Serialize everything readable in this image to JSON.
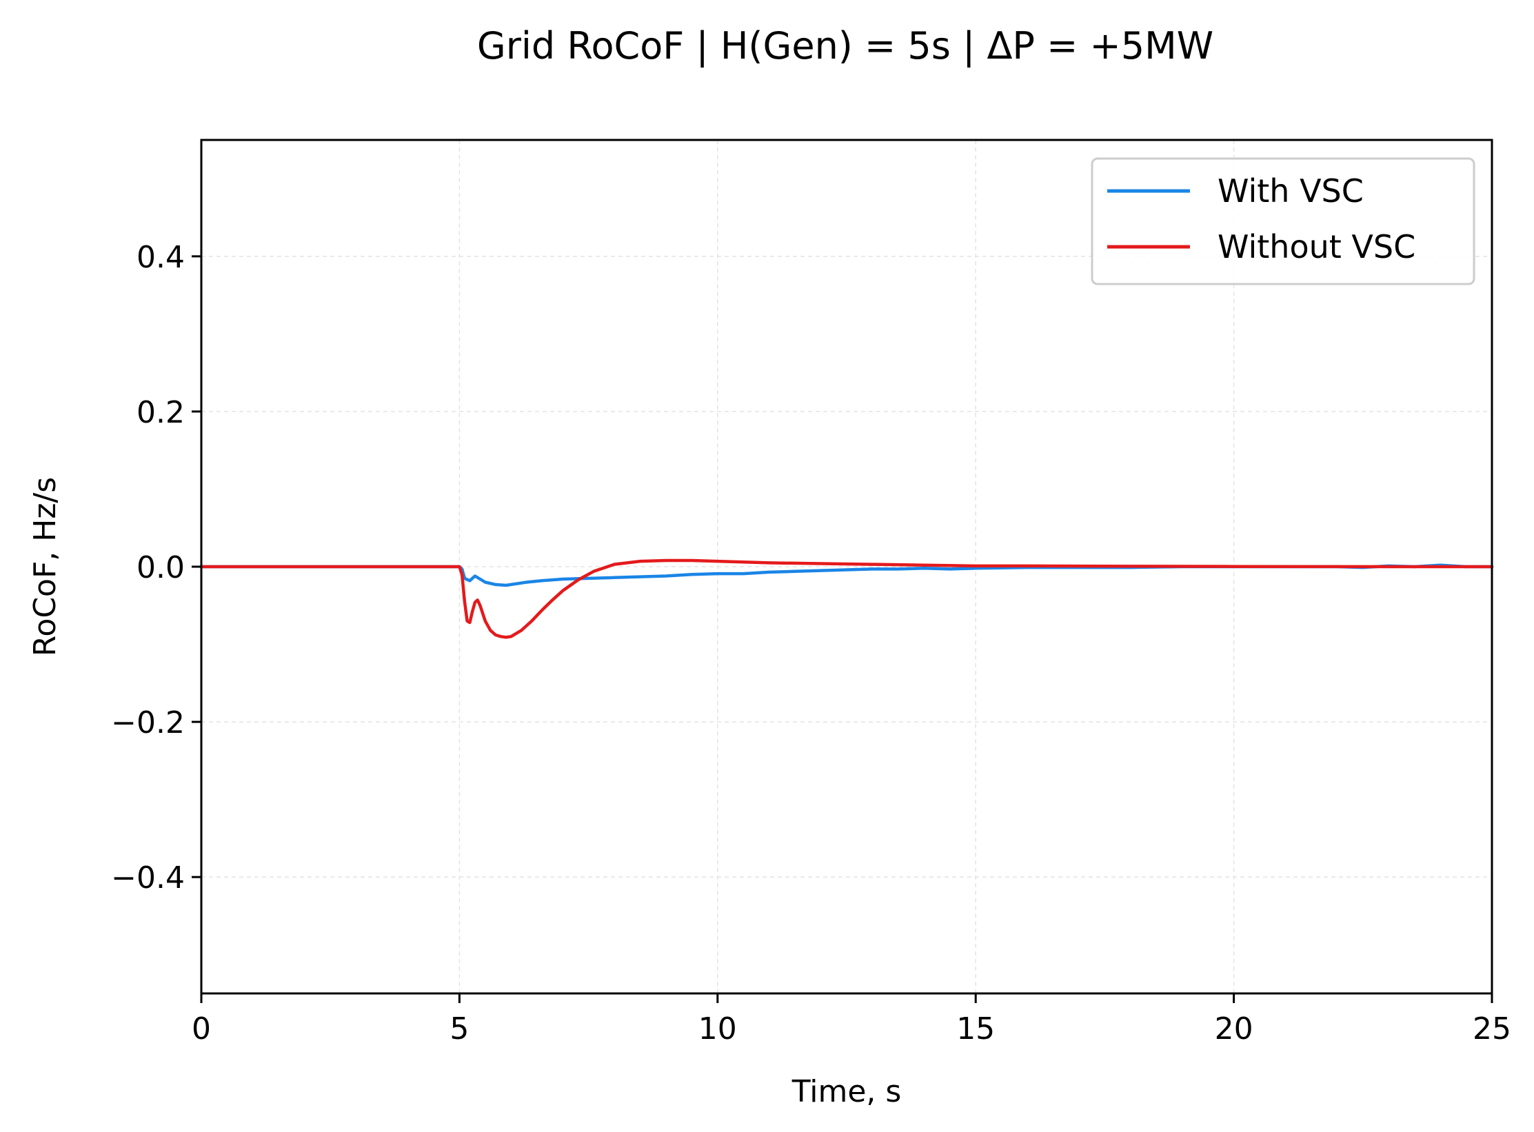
{
  "chart_data": {
    "type": "line",
    "title": "Grid RoCoF  |  H(Gen) = 5s  |  ΔP = +5MW",
    "xlabel": "Time, s",
    "ylabel": "RoCoF, Hz/s",
    "xlim": [
      0,
      25
    ],
    "ylim": [
      -0.55,
      0.55
    ],
    "x_ticks": [
      0,
      5,
      10,
      15,
      20,
      25
    ],
    "x_tick_labels": [
      "0",
      "5",
      "10",
      "15",
      "20",
      "25"
    ],
    "y_ticks": [
      0.4,
      0.2,
      0.0,
      -0.2,
      -0.4
    ],
    "y_tick_labels": [
      "0.4",
      "0.2",
      "0.0",
      "−0.2",
      "−0.4"
    ],
    "grid": true,
    "legend_position": "top-right",
    "series": [
      {
        "name": "With VSC",
        "color": "#1a85e6",
        "x": [
          0,
          1,
          2,
          3,
          4,
          5,
          5.05,
          5.1,
          5.2,
          5.3,
          5.4,
          5.5,
          5.7,
          5.9,
          6.0,
          6.3,
          6.6,
          7.0,
          7.5,
          8.0,
          8.5,
          9.0,
          9.5,
          10.0,
          10.5,
          11.0,
          11.5,
          12.0,
          12.5,
          13.0,
          13.5,
          14.0,
          14.5,
          15.0,
          16.0,
          17.0,
          18.0,
          19.0,
          20.0,
          21.0,
          22.0,
          22.5,
          23.0,
          23.5,
          24.0,
          24.5,
          25.0
        ],
        "y": [
          0,
          0,
          0,
          0,
          0,
          0,
          -0.003,
          -0.015,
          -0.018,
          -0.012,
          -0.016,
          -0.02,
          -0.023,
          -0.024,
          -0.023,
          -0.02,
          -0.018,
          -0.016,
          -0.015,
          -0.014,
          -0.013,
          -0.012,
          -0.01,
          -0.009,
          -0.009,
          -0.007,
          -0.006,
          -0.005,
          -0.004,
          -0.003,
          -0.003,
          -0.002,
          -0.003,
          -0.002,
          -0.001,
          -0.001,
          -0.001,
          0,
          0,
          0,
          0,
          -0.001,
          0.001,
          0,
          0.002,
          0,
          0
        ]
      },
      {
        "name": "Without VSC",
        "color": "#e41a1c",
        "x": [
          0,
          1,
          2,
          3,
          4,
          5,
          5.05,
          5.1,
          5.15,
          5.2,
          5.25,
          5.3,
          5.35,
          5.4,
          5.5,
          5.6,
          5.7,
          5.8,
          5.9,
          6.0,
          6.2,
          6.4,
          6.6,
          6.8,
          7.0,
          7.3,
          7.6,
          8.0,
          8.5,
          9.0,
          9.5,
          10.0,
          11.0,
          12.0,
          13.0,
          14.0,
          15.0,
          16.0,
          18.0,
          20.0,
          22.0,
          25.0
        ],
        "y": [
          0,
          0,
          0,
          0,
          0,
          0,
          -0.01,
          -0.045,
          -0.07,
          -0.072,
          -0.058,
          -0.046,
          -0.043,
          -0.05,
          -0.07,
          -0.082,
          -0.088,
          -0.09,
          -0.091,
          -0.09,
          -0.082,
          -0.07,
          -0.056,
          -0.043,
          -0.031,
          -0.017,
          -0.006,
          0.003,
          0.007,
          0.008,
          0.008,
          0.007,
          0.005,
          0.004,
          0.003,
          0.002,
          0.001,
          0.001,
          0.0005,
          0.0003,
          0.0001,
          0
        ]
      }
    ]
  }
}
